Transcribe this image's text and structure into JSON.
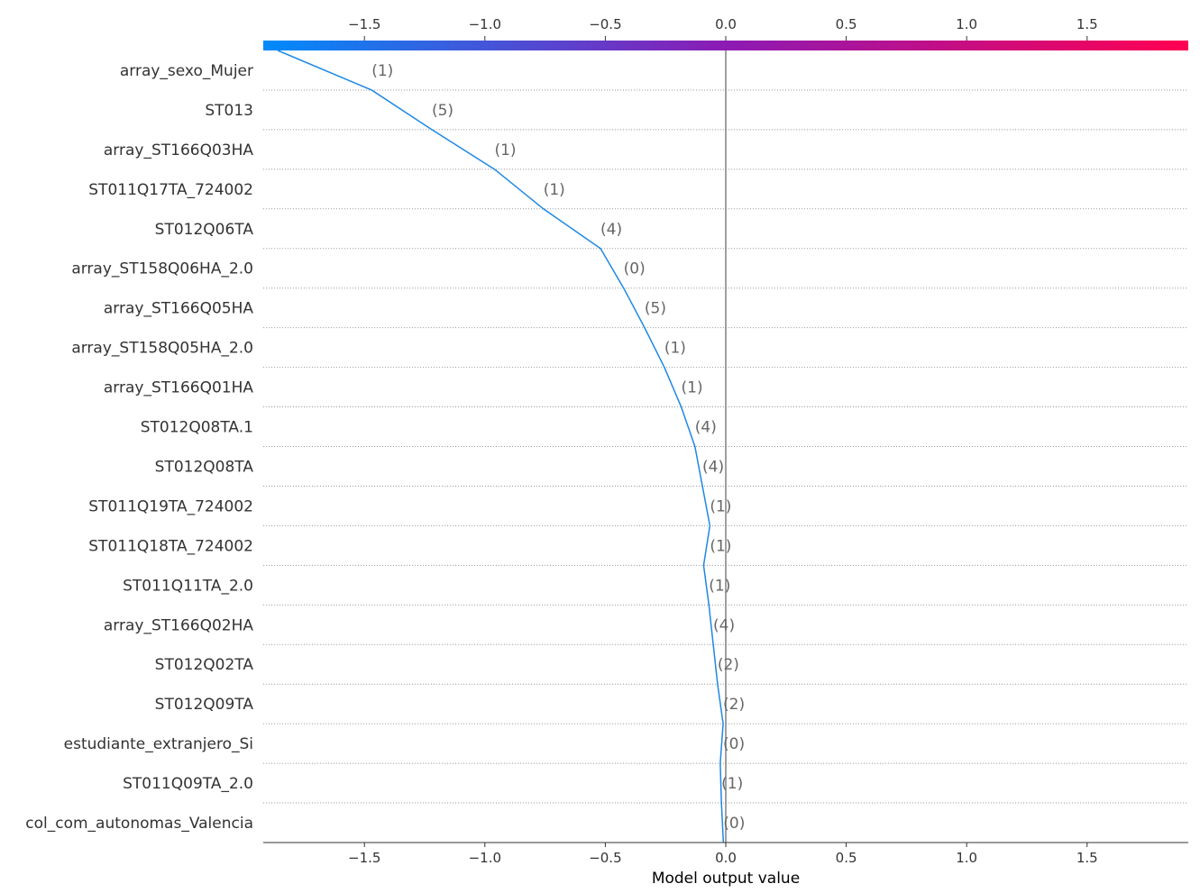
{
  "chart_data": {
    "type": "line",
    "title": "",
    "xlabel": "Model output value",
    "ylabel": "",
    "xlim": [
      -1.92,
      1.92
    ],
    "base_value": 0.0,
    "colorbar": {
      "from": "#008bfb",
      "mid": "#8c1bb4",
      "to": "#ff0052"
    },
    "line_color": "#1e88e5",
    "base_line_color": "#808080",
    "x_ticks": [
      {
        "value": -1.5,
        "label": "−1.5"
      },
      {
        "value": -1.0,
        "label": "−1.0"
      },
      {
        "value": -0.5,
        "label": "−0.5"
      },
      {
        "value": 0.0,
        "label": "0.0"
      },
      {
        "value": 0.5,
        "label": "0.5"
      },
      {
        "value": 1.0,
        "label": "1.0"
      },
      {
        "value": 1.5,
        "label": "1.5"
      }
    ],
    "features": [
      {
        "name": "array_sexo_Mujer",
        "value_label": "(1)"
      },
      {
        "name": "ST013",
        "value_label": "(5)"
      },
      {
        "name": "array_ST166Q03HA",
        "value_label": "(1)"
      },
      {
        "name": "ST011Q17TA_724002",
        "value_label": "(1)"
      },
      {
        "name": "ST012Q06TA",
        "value_label": "(4)"
      },
      {
        "name": "array_ST158Q06HA_2.0",
        "value_label": "(0)"
      },
      {
        "name": "array_ST166Q05HA",
        "value_label": "(5)"
      },
      {
        "name": "array_ST158Q05HA_2.0",
        "value_label": "(1)"
      },
      {
        "name": "array_ST166Q01HA",
        "value_label": "(1)"
      },
      {
        "name": "ST012Q08TA.1",
        "value_label": "(4)"
      },
      {
        "name": "ST012Q08TA",
        "value_label": "(4)"
      },
      {
        "name": "ST011Q19TA_724002",
        "value_label": "(1)"
      },
      {
        "name": "ST011Q18TA_724002",
        "value_label": "(1)"
      },
      {
        "name": "ST011Q11TA_2.0",
        "value_label": "(1)"
      },
      {
        "name": "array_ST166Q02HA",
        "value_label": "(4)"
      },
      {
        "name": "ST012Q02TA",
        "value_label": "(2)"
      },
      {
        "name": "ST012Q09TA",
        "value_label": "(2)"
      },
      {
        "name": "estudiante_extranjero_Si",
        "value_label": "(0)"
      },
      {
        "name": "ST011Q09TA_2.0",
        "value_label": "(1)"
      },
      {
        "name": "col_com_autonomas_Valencia",
        "value_label": "(0)"
      }
    ],
    "path_values": [
      -1.86,
      -1.47,
      -1.22,
      -0.96,
      -0.757,
      -0.52,
      -0.424,
      -0.337,
      -0.255,
      -0.185,
      -0.128,
      -0.097,
      -0.066,
      -0.092,
      -0.07,
      -0.052,
      -0.034,
      -0.011,
      -0.023,
      -0.018,
      -0.01
    ]
  }
}
